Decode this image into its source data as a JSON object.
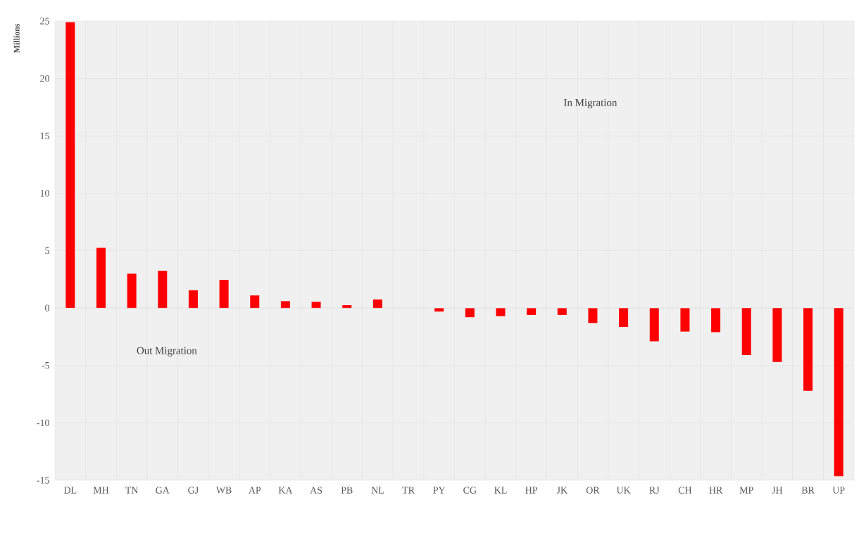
{
  "chart_data": {
    "type": "bar",
    "ylabel": "Millions",
    "categories": [
      "DL",
      "MH",
      "TN",
      "GA",
      "GJ",
      "WB",
      "AP",
      "KA",
      "AS",
      "PB",
      "NL",
      "TR",
      "PY",
      "CG",
      "KL",
      "HP",
      "JK",
      "OR",
      "UK",
      "RJ",
      "CH",
      "HR",
      "MP",
      "JH",
      "BR",
      "UP"
    ],
    "values": [
      24.9,
      5.25,
      3.0,
      3.25,
      1.55,
      2.45,
      1.1,
      0.6,
      0.55,
      0.25,
      0.75,
      0,
      -0.3,
      -0.8,
      -0.7,
      -0.6,
      -0.6,
      -1.3,
      -1.65,
      -2.9,
      -2.05,
      -2.1,
      -4.1,
      -4.7,
      -7.2,
      -14.65
    ],
    "color": "#ff0000",
    "ylim": [
      -15,
      25
    ],
    "yticks": [
      -15,
      -10,
      -5,
      0,
      5,
      10,
      15,
      20,
      25
    ],
    "grid": true,
    "annotations": [
      "In Migration",
      "Out Migration"
    ]
  }
}
